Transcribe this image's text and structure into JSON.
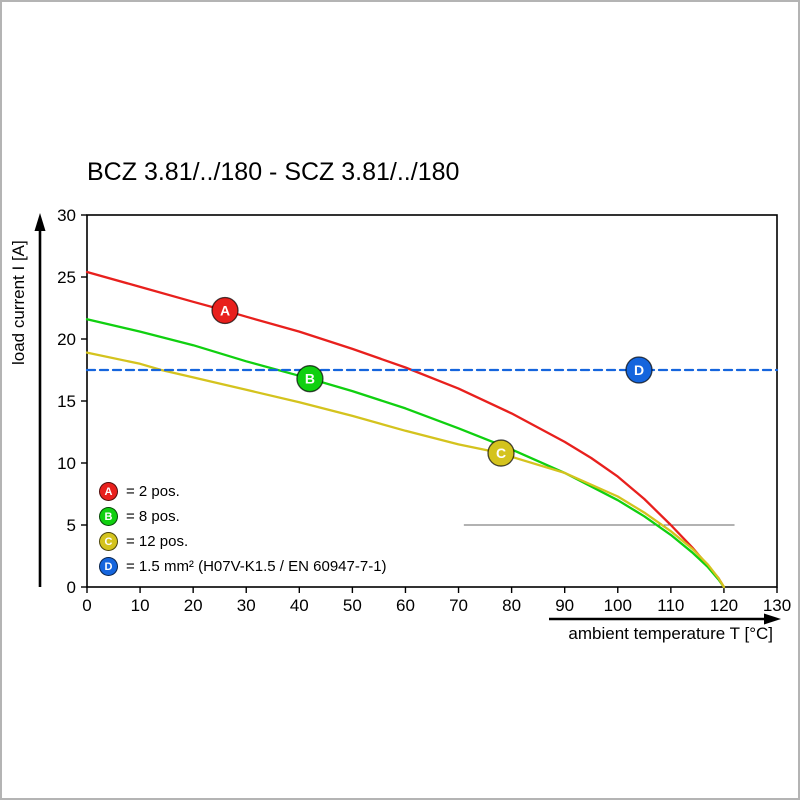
{
  "chart_data": {
    "type": "line",
    "title": "BCZ 3.81/../180 - SCZ 3.81/../180",
    "xlabel": "ambient temperature T [°C]",
    "ylabel": "load current I [A]",
    "xlim": [
      0,
      130
    ],
    "ylim": [
      0,
      30
    ],
    "xticks": [
      0,
      10,
      20,
      30,
      40,
      50,
      60,
      70,
      80,
      90,
      100,
      110,
      120,
      130
    ],
    "yticks": [
      0,
      5,
      10,
      15,
      20,
      25,
      30
    ],
    "grid": false,
    "legend_position": "bottom-left-inside",
    "series": [
      {
        "id": "A",
        "label": "= 2 pos.",
        "color": "#e8201d",
        "line_style": "solid",
        "marker": {
          "x": 26,
          "y": 22.3
        },
        "points": [
          [
            0,
            25.4
          ],
          [
            10,
            24.2
          ],
          [
            20,
            23.0
          ],
          [
            26,
            22.3
          ],
          [
            30,
            21.8
          ],
          [
            40,
            20.6
          ],
          [
            50,
            19.2
          ],
          [
            60,
            17.7
          ],
          [
            70,
            16.0
          ],
          [
            80,
            14.0
          ],
          [
            90,
            11.7
          ],
          [
            95,
            10.4
          ],
          [
            100,
            8.9
          ],
          [
            105,
            7.1
          ],
          [
            110,
            5.0
          ],
          [
            114,
            3.2
          ],
          [
            117,
            1.7
          ],
          [
            119,
            0.7
          ],
          [
            120,
            0
          ]
        ]
      },
      {
        "id": "B",
        "label": "= 8 pos.",
        "color": "#10d010",
        "line_style": "solid",
        "marker": {
          "x": 42,
          "y": 16.8
        },
        "points": [
          [
            0,
            21.6
          ],
          [
            10,
            20.6
          ],
          [
            20,
            19.5
          ],
          [
            30,
            18.2
          ],
          [
            42,
            16.8
          ],
          [
            50,
            15.8
          ],
          [
            60,
            14.4
          ],
          [
            70,
            12.8
          ],
          [
            80,
            11.1
          ],
          [
            90,
            9.2
          ],
          [
            100,
            7.0
          ],
          [
            105,
            5.7
          ],
          [
            110,
            4.2
          ],
          [
            114,
            2.8
          ],
          [
            117,
            1.6
          ],
          [
            119,
            0.6
          ],
          [
            120,
            0
          ]
        ]
      },
      {
        "id": "C",
        "label": "= 12 pos.",
        "color": "#d4c31e",
        "line_style": "solid",
        "marker": {
          "x": 78,
          "y": 10.8
        },
        "points": [
          [
            0,
            18.9
          ],
          [
            10,
            18.0
          ],
          [
            14,
            17.5
          ],
          [
            20,
            16.9
          ],
          [
            30,
            15.9
          ],
          [
            40,
            14.9
          ],
          [
            50,
            13.8
          ],
          [
            60,
            12.6
          ],
          [
            70,
            11.5
          ],
          [
            78,
            10.8
          ],
          [
            80,
            10.5
          ],
          [
            90,
            9.2
          ],
          [
            100,
            7.3
          ],
          [
            105,
            6.0
          ],
          [
            110,
            4.5
          ],
          [
            114,
            3.1
          ],
          [
            117,
            1.8
          ],
          [
            119,
            0.7
          ],
          [
            120,
            0
          ]
        ]
      },
      {
        "id": "D",
        "label": "= 1.5 mm² (H07V-K1.5 / EN 60947-7-1)",
        "color": "#1565dd",
        "line_style": "dashed",
        "marker": {
          "x": 104,
          "y": 17.5
        },
        "points": [
          [
            0,
            17.5
          ],
          [
            130,
            17.5
          ]
        ]
      }
    ],
    "annotations": {
      "partial_line": {
        "y": 5,
        "x_from": 71,
        "x_to": 122
      }
    }
  }
}
